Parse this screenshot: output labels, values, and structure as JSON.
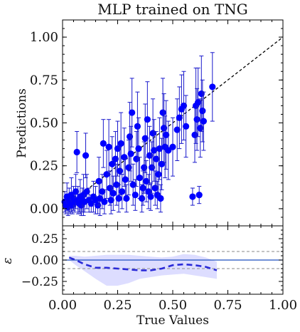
{
  "chart_data": [
    {
      "type": "scatter",
      "title": "MLP trained on TNG",
      "xlabel": "",
      "ylabel": "Predictions",
      "xlim": [
        0.0,
        1.0
      ],
      "ylim": [
        -0.1,
        1.1
      ],
      "yticks": [
        "0.00",
        "0.25",
        "0.50",
        "0.75",
        "1.00"
      ],
      "grid": false,
      "reference_line": {
        "style": "dashed",
        "color": "#000000",
        "x": [
          0,
          1
        ],
        "y": [
          0,
          1
        ]
      },
      "marker_color": "#0000ff",
      "errorbar_color": "#1a1acc",
      "points": [
        {
          "x": 0.01,
          "y": 0.04,
          "err": 0.06
        },
        {
          "x": 0.015,
          "y": 0.02,
          "err": 0.05
        },
        {
          "x": 0.02,
          "y": 0.07,
          "err": 0.08
        },
        {
          "x": 0.025,
          "y": 0.01,
          "err": 0.05
        },
        {
          "x": 0.03,
          "y": 0.05,
          "err": 0.07
        },
        {
          "x": 0.035,
          "y": 0.03,
          "err": 0.06
        },
        {
          "x": 0.04,
          "y": 0.08,
          "err": 0.1
        },
        {
          "x": 0.045,
          "y": 0.02,
          "err": 0.05
        },
        {
          "x": 0.05,
          "y": 0.06,
          "err": 0.07
        },
        {
          "x": 0.055,
          "y": 0.04,
          "err": 0.06
        },
        {
          "x": 0.06,
          "y": 0.1,
          "err": 0.1
        },
        {
          "x": 0.065,
          "y": 0.33,
          "err": 0.12
        },
        {
          "x": 0.07,
          "y": 0.05,
          "err": 0.08
        },
        {
          "x": 0.075,
          "y": 0.03,
          "err": 0.05
        },
        {
          "x": 0.08,
          "y": 0.07,
          "err": 0.1
        },
        {
          "x": 0.085,
          "y": 0.02,
          "err": 0.06
        },
        {
          "x": 0.09,
          "y": 0.05,
          "err": 0.07
        },
        {
          "x": 0.095,
          "y": 0.08,
          "err": 0.12
        },
        {
          "x": 0.1,
          "y": 0.04,
          "err": 0.06
        },
        {
          "x": 0.105,
          "y": 0.31,
          "err": 0.13
        },
        {
          "x": 0.11,
          "y": 0.1,
          "err": 0.1
        },
        {
          "x": 0.12,
          "y": 0.05,
          "err": 0.07
        },
        {
          "x": 0.13,
          "y": 0.03,
          "err": 0.05
        },
        {
          "x": 0.14,
          "y": 0.07,
          "err": 0.09
        },
        {
          "x": 0.15,
          "y": 0.05,
          "err": 0.08
        },
        {
          "x": 0.16,
          "y": 0.02,
          "err": 0.05
        },
        {
          "x": 0.165,
          "y": 0.16,
          "err": 0.14
        },
        {
          "x": 0.17,
          "y": 0.06,
          "err": 0.1
        },
        {
          "x": 0.18,
          "y": 0.1,
          "err": 0.1
        },
        {
          "x": 0.185,
          "y": 0.38,
          "err": 0.14
        },
        {
          "x": 0.19,
          "y": 0.04,
          "err": 0.07
        },
        {
          "x": 0.2,
          "y": 0.2,
          "err": 0.14
        },
        {
          "x": 0.21,
          "y": 0.36,
          "err": 0.16
        },
        {
          "x": 0.215,
          "y": 0.12,
          "err": 0.1
        },
        {
          "x": 0.22,
          "y": 0.05,
          "err": 0.08
        },
        {
          "x": 0.225,
          "y": 0.26,
          "err": 0.16
        },
        {
          "x": 0.23,
          "y": 0.09,
          "err": 0.1
        },
        {
          "x": 0.24,
          "y": 0.29,
          "err": 0.16
        },
        {
          "x": 0.245,
          "y": 0.14,
          "err": 0.12
        },
        {
          "x": 0.25,
          "y": 0.35,
          "err": 0.16
        },
        {
          "x": 0.255,
          "y": 0.06,
          "err": 0.08
        },
        {
          "x": 0.26,
          "y": 0.22,
          "err": 0.14
        },
        {
          "x": 0.265,
          "y": 0.38,
          "err": 0.18
        },
        {
          "x": 0.27,
          "y": 0.1,
          "err": 0.1
        },
        {
          "x": 0.28,
          "y": 0.3,
          "err": 0.17
        },
        {
          "x": 0.285,
          "y": 0.17,
          "err": 0.12
        },
        {
          "x": 0.29,
          "y": 0.06,
          "err": 0.08
        },
        {
          "x": 0.3,
          "y": 0.24,
          "err": 0.16
        },
        {
          "x": 0.305,
          "y": 0.42,
          "err": 0.2
        },
        {
          "x": 0.31,
          "y": 0.32,
          "err": 0.16
        },
        {
          "x": 0.315,
          "y": 0.56,
          "err": 0.2
        },
        {
          "x": 0.32,
          "y": 0.14,
          "err": 0.12
        },
        {
          "x": 0.33,
          "y": 0.08,
          "err": 0.09
        },
        {
          "x": 0.335,
          "y": 0.29,
          "err": 0.16
        },
        {
          "x": 0.34,
          "y": 0.48,
          "err": 0.2
        },
        {
          "x": 0.345,
          "y": 0.35,
          "err": 0.18
        },
        {
          "x": 0.35,
          "y": 0.18,
          "err": 0.12
        },
        {
          "x": 0.36,
          "y": 0.06,
          "err": 0.08
        },
        {
          "x": 0.365,
          "y": 0.12,
          "err": 0.1
        },
        {
          "x": 0.37,
          "y": 0.24,
          "err": 0.15
        },
        {
          "x": 0.375,
          "y": 0.41,
          "err": 0.2
        },
        {
          "x": 0.38,
          "y": 0.16,
          "err": 0.12
        },
        {
          "x": 0.385,
          "y": 0.52,
          "err": 0.22
        },
        {
          "x": 0.39,
          "y": 0.1,
          "err": 0.1
        },
        {
          "x": 0.395,
          "y": 0.31,
          "err": 0.17
        },
        {
          "x": 0.4,
          "y": 0.07,
          "err": 0.08
        },
        {
          "x": 0.405,
          "y": 0.24,
          "err": 0.15
        },
        {
          "x": 0.41,
          "y": 0.44,
          "err": 0.2
        },
        {
          "x": 0.415,
          "y": 0.34,
          "err": 0.18
        },
        {
          "x": 0.42,
          "y": 0.12,
          "err": 0.1
        },
        {
          "x": 0.425,
          "y": 0.29,
          "err": 0.16
        },
        {
          "x": 0.43,
          "y": 0.08,
          "err": 0.08
        },
        {
          "x": 0.435,
          "y": 0.2,
          "err": 0.14
        },
        {
          "x": 0.44,
          "y": 0.35,
          "err": 0.18
        },
        {
          "x": 0.445,
          "y": 0.06,
          "err": 0.08
        },
        {
          "x": 0.45,
          "y": 0.26,
          "err": 0.15
        },
        {
          "x": 0.455,
          "y": 0.56,
          "err": 0.2
        },
        {
          "x": 0.46,
          "y": 0.47,
          "err": 0.2
        },
        {
          "x": 0.465,
          "y": 0.36,
          "err": 0.18
        },
        {
          "x": 0.47,
          "y": 0.43,
          "err": 0.2
        },
        {
          "x": 0.48,
          "y": 0.34,
          "err": 0.17
        },
        {
          "x": 0.5,
          "y": 0.36,
          "err": 0.17
        },
        {
          "x": 0.52,
          "y": 0.46,
          "err": 0.18
        },
        {
          "x": 0.53,
          "y": 0.53,
          "err": 0.18
        },
        {
          "x": 0.54,
          "y": 0.58,
          "err": 0.2
        },
        {
          "x": 0.55,
          "y": 0.6,
          "err": 0.2
        },
        {
          "x": 0.56,
          "y": 0.48,
          "err": 0.18
        },
        {
          "x": 0.59,
          "y": 0.07,
          "err": 0.05
        },
        {
          "x": 0.6,
          "y": 0.43,
          "err": 0.16
        },
        {
          "x": 0.605,
          "y": 0.6,
          "err": 0.22
        },
        {
          "x": 0.61,
          "y": 0.52,
          "err": 0.18
        },
        {
          "x": 0.615,
          "y": 0.62,
          "err": 0.2
        },
        {
          "x": 0.62,
          "y": 0.08,
          "err": 0.05
        },
        {
          "x": 0.625,
          "y": 0.47,
          "err": 0.17
        },
        {
          "x": 0.63,
          "y": 0.67,
          "err": 0.22
        },
        {
          "x": 0.635,
          "y": 0.57,
          "err": 0.18
        },
        {
          "x": 0.64,
          "y": 0.51,
          "err": 0.17
        },
        {
          "x": 0.68,
          "y": 0.71,
          "err": 0.2
        }
      ]
    },
    {
      "type": "line",
      "title": "",
      "xlabel": "True Values",
      "ylabel": "ε",
      "xlim": [
        0.0,
        1.0
      ],
      "ylim": [
        -0.4,
        0.4
      ],
      "xticks": [
        "0.00",
        "0.25",
        "0.50",
        "0.75",
        "1.00"
      ],
      "yticks": [
        "−0.25",
        "0.00",
        "0.25"
      ],
      "hlines": [
        {
          "y": 0.1,
          "style": "dashed",
          "color": "#a0a0a0"
        },
        {
          "y": -0.1,
          "style": "dashed",
          "color": "#a0a0a0"
        },
        {
          "y": 0.0,
          "style": "solid",
          "color": "#1f4fbf"
        }
      ],
      "series": [
        {
          "style": "dashed",
          "color": "#2a2ad8",
          "x": [
            0.03,
            0.06,
            0.1,
            0.15,
            0.2,
            0.25,
            0.3,
            0.35,
            0.4,
            0.45,
            0.5,
            0.55,
            0.6,
            0.65,
            0.7
          ],
          "y": [
            0.03,
            0.0,
            -0.05,
            -0.09,
            -0.09,
            -0.1,
            -0.11,
            -0.12,
            -0.12,
            -0.1,
            -0.06,
            -0.05,
            -0.06,
            -0.08,
            -0.12
          ]
        }
      ],
      "band": {
        "color": "#d7d7ff",
        "x": [
          0.03,
          0.06,
          0.1,
          0.15,
          0.2,
          0.25,
          0.3,
          0.35,
          0.4,
          0.45,
          0.5,
          0.55,
          0.6,
          0.65,
          0.7
        ],
        "upper": [
          0.05,
          0.05,
          0.04,
          0.05,
          0.06,
          0.06,
          0.06,
          0.05,
          0.04,
          0.03,
          0.04,
          0.07,
          0.06,
          0.03,
          -0.02
        ],
        "lower": [
          0.0,
          -0.06,
          -0.13,
          -0.22,
          -0.3,
          -0.3,
          -0.27,
          -0.22,
          -0.2,
          -0.18,
          -0.17,
          -0.16,
          -0.18,
          -0.2,
          -0.22
        ]
      }
    }
  ]
}
